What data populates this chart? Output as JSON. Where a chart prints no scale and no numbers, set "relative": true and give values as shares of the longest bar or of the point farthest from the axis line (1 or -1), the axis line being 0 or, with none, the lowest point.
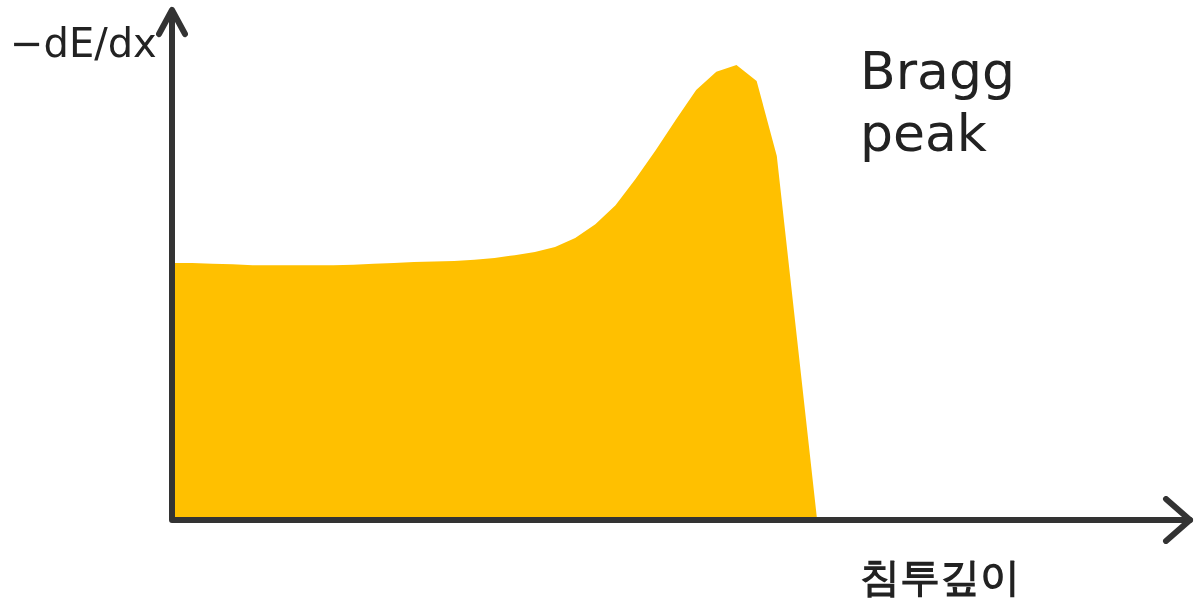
{
  "chart_data": {
    "type": "area",
    "relative": true,
    "ylabel": "−dE/dx",
    "xlabel": "침투깊이",
    "annotations": [
      "Bragg peak"
    ],
    "legend": false,
    "tick_labels": false,
    "categories": [
      null,
      null,
      null,
      null,
      null,
      null,
      null,
      null,
      null,
      null,
      null,
      null,
      null,
      null,
      null,
      null,
      null,
      null,
      null,
      null,
      null,
      null,
      null,
      null,
      null,
      null,
      null,
      null,
      null,
      null,
      null,
      null,
      null,
      null,
      null,
      null,
      null,
      null,
      null,
      null,
      null,
      null,
      null,
      null,
      null,
      null,
      null,
      null,
      null,
      null,
      null
    ],
    "series": [
      {
        "color": "#ffc000",
        "values": [
          0.565,
          0.565,
          0.563,
          0.562,
          0.56,
          0.56,
          0.56,
          0.56,
          0.56,
          0.561,
          0.563,
          0.565,
          0.567,
          0.568,
          0.569,
          0.572,
          0.576,
          0.582,
          0.589,
          0.6,
          0.62,
          0.65,
          0.692,
          0.75,
          0.813,
          0.88,
          0.945,
          0.985,
          1,
          0.965,
          0.8,
          0.4,
          0,
          null,
          null,
          null,
          null,
          null,
          null,
          null,
          null,
          null,
          null,
          null,
          null,
          null,
          null,
          null,
          null,
          null,
          null
        ]
      }
    ]
  }
}
